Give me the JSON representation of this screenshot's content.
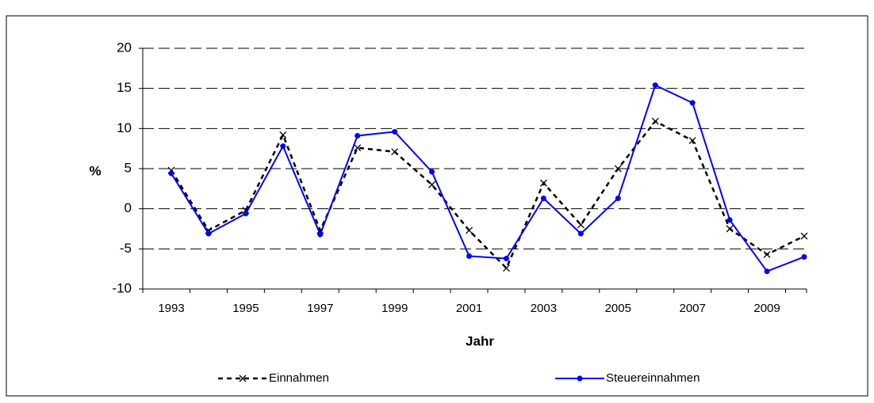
{
  "chart_data": {
    "type": "line",
    "xlabel": "Jahr",
    "ylabel": "%",
    "categories": [
      "1993",
      null,
      "1995",
      null,
      "1997",
      null,
      "1999",
      null,
      "2001",
      null,
      "2003",
      null,
      "2005",
      null,
      "2007",
      null,
      "2009",
      null
    ],
    "series": [
      {
        "name": "Einnahmen",
        "color": "#000000",
        "line_style": "dashed",
        "marker": "x",
        "values": [
          4.8,
          -2.7,
          -0.2,
          9.2,
          -2.7,
          7.6,
          7.1,
          3.0,
          -2.7,
          -7.4,
          3.2,
          -2.0,
          5.0,
          10.9,
          8.5,
          -2.5,
          -5.7,
          -3.4
        ]
      },
      {
        "name": "Steuereinnahmen",
        "color": "#0000ff",
        "line_style": "solid",
        "marker": "circle",
        "values": [
          4.4,
          -3.1,
          -0.6,
          7.8,
          -3.2,
          9.1,
          9.6,
          4.6,
          -5.9,
          -6.2,
          1.3,
          -3.1,
          1.3,
          15.4,
          13.2,
          -1.4,
          -7.8,
          -6.0
        ]
      }
    ],
    "ylim": [
      -10,
      20
    ],
    "yticks": [
      -10,
      -5,
      0,
      5,
      10,
      15,
      20
    ],
    "grid": true,
    "legend": "bottom"
  }
}
